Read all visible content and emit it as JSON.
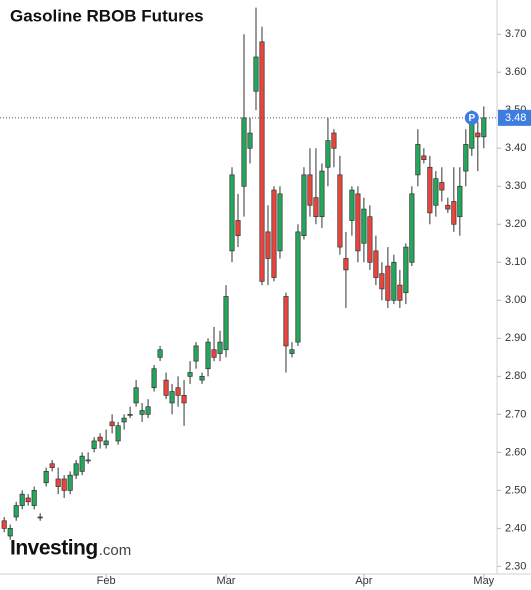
{
  "chart_data": {
    "type": "candlestick",
    "title": "Gasoline RBOB Futures",
    "logo": {
      "name": "Investing",
      "suffix": ".com"
    },
    "up_color": "#26a65b",
    "down_color": "#e8463c",
    "price_color": "#3d7de0",
    "last_price": 3.48,
    "marker": "P",
    "open": [
      2.42,
      2.38,
      2.43,
      2.46,
      2.48,
      2.46,
      2.43,
      2.52,
      2.57,
      2.53,
      2.53,
      2.5,
      2.54,
      2.55,
      2.58,
      2.61,
      2.64,
      2.62,
      2.68,
      2.63,
      2.68,
      2.7,
      2.73,
      2.7,
      2.7,
      2.77,
      2.85,
      2.79,
      2.73,
      2.77,
      2.75,
      2.8,
      2.84,
      2.79,
      2.82,
      2.87,
      2.86,
      2.87,
      3.13,
      3.21,
      3.3,
      3.4,
      3.55,
      3.68,
      3.18,
      3.29,
      3.13,
      3.01,
      2.86,
      2.89,
      3.17,
      3.33,
      3.27,
      3.22,
      3.35,
      3.44,
      3.33,
      3.11,
      3.21,
      3.28,
      3.15,
      3.22,
      3.13,
      3.07,
      3.09,
      3.0,
      3.04,
      3.02,
      3.1,
      3.33,
      3.38,
      3.35,
      3.25,
      3.31,
      3.25,
      3.26,
      3.22,
      3.34,
      3.4,
      3.44,
      3.43
    ],
    "high": [
      2.43,
      2.41,
      2.47,
      2.5,
      2.49,
      2.51,
      2.44,
      2.56,
      2.58,
      2.56,
      2.54,
      2.55,
      2.58,
      2.6,
      2.6,
      2.64,
      2.65,
      2.66,
      2.7,
      2.68,
      2.7,
      2.72,
      2.79,
      2.73,
      2.74,
      2.83,
      2.88,
      2.81,
      2.78,
      2.8,
      2.79,
      2.84,
      2.89,
      2.81,
      2.9,
      2.93,
      2.92,
      3.04,
      3.35,
      3.28,
      3.7,
      3.48,
      3.77,
      3.72,
      3.25,
      3.3,
      3.3,
      3.02,
      2.89,
      3.2,
      3.35,
      3.4,
      3.4,
      3.36,
      3.48,
      3.45,
      3.38,
      3.18,
      3.3,
      3.3,
      3.27,
      3.25,
      3.17,
      3.1,
      3.14,
      3.12,
      3.08,
      3.15,
      3.3,
      3.45,
      3.4,
      3.38,
      3.34,
      3.35,
      3.27,
      3.35,
      3.35,
      3.45,
      3.5,
      3.47,
      3.51
    ],
    "low": [
      2.39,
      2.37,
      2.42,
      2.45,
      2.46,
      2.45,
      2.42,
      2.51,
      2.55,
      2.49,
      2.48,
      2.49,
      2.53,
      2.54,
      2.57,
      2.6,
      2.61,
      2.61,
      2.65,
      2.62,
      2.66,
      2.69,
      2.72,
      2.68,
      2.69,
      2.76,
      2.84,
      2.74,
      2.7,
      2.72,
      2.67,
      2.78,
      2.82,
      2.78,
      2.8,
      2.84,
      2.84,
      2.85,
      3.1,
      3.14,
      3.22,
      3.36,
      3.5,
      3.04,
      3.04,
      3.05,
      3.11,
      2.81,
      2.85,
      2.88,
      3.16,
      3.22,
      3.2,
      3.19,
      3.3,
      3.35,
      3.12,
      2.98,
      3.17,
      3.1,
      3.1,
      3.08,
      3.04,
      3.0,
      2.98,
      2.99,
      2.98,
      2.99,
      3.09,
      3.3,
      3.36,
      3.2,
      3.22,
      3.26,
      3.23,
      3.18,
      3.17,
      3.3,
      3.38,
      3.34,
      3.4
    ],
    "close": [
      2.4,
      2.4,
      2.46,
      2.49,
      2.47,
      2.5,
      2.43,
      2.55,
      2.56,
      2.51,
      2.5,
      2.54,
      2.57,
      2.59,
      2.58,
      2.63,
      2.63,
      2.63,
      2.67,
      2.67,
      2.69,
      2.7,
      2.77,
      2.71,
      2.72,
      2.82,
      2.87,
      2.75,
      2.76,
      2.75,
      2.73,
      2.81,
      2.88,
      2.8,
      2.89,
      2.85,
      2.89,
      3.01,
      3.33,
      3.17,
      3.48,
      3.44,
      3.64,
      3.05,
      3.11,
      3.06,
      3.28,
      2.88,
      2.87,
      3.18,
      3.33,
      3.25,
      3.22,
      3.34,
      3.42,
      3.4,
      3.14,
      3.08,
      3.29,
      3.13,
      3.24,
      3.1,
      3.06,
      3.03,
      3.0,
      3.1,
      3.0,
      3.14,
      3.28,
      3.41,
      3.37,
      3.23,
      3.32,
      3.29,
      3.24,
      3.2,
      3.3,
      3.41,
      3.48,
      3.43,
      3.48
    ],
    "xlim": [
      -0.7,
      82.2
    ],
    "xticks": [
      {
        "value": 17,
        "label": "Feb"
      },
      {
        "value": 37,
        "label": "Mar"
      },
      {
        "value": 60,
        "label": "Apr"
      },
      {
        "value": 80,
        "label": "May"
      }
    ],
    "ylim": [
      2.28,
      3.79
    ],
    "yticks": [
      {
        "value": 2.3,
        "label": "2.30"
      },
      {
        "value": 2.4,
        "label": "2.40"
      },
      {
        "value": 2.5,
        "label": "2.50"
      },
      {
        "value": 2.6,
        "label": "2.60"
      },
      {
        "value": 2.7,
        "label": "2.70"
      },
      {
        "value": 2.8,
        "label": "2.80"
      },
      {
        "value": 2.9,
        "label": "2.90"
      },
      {
        "value": 3.0,
        "label": "3.00"
      },
      {
        "value": 3.1,
        "label": "3.10"
      },
      {
        "value": 3.2,
        "label": "3.20"
      },
      {
        "value": 3.3,
        "label": "3.30"
      },
      {
        "value": 3.4,
        "label": "3.40"
      },
      {
        "value": 3.5,
        "label": "3.50"
      },
      {
        "value": 3.6,
        "label": "3.60"
      },
      {
        "value": 3.7,
        "label": "3.70"
      }
    ]
  }
}
